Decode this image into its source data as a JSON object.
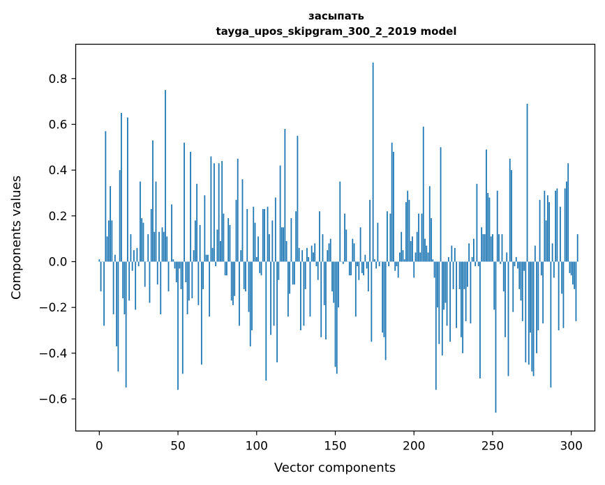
{
  "chart_data": {
    "type": "bar",
    "title_line1": "засыпать",
    "title_line2": "tayga_upos_skipgram_300_2_2019 model",
    "xlabel": "Vector components",
    "ylabel": "Components values",
    "xlim": [
      -15,
      315
    ],
    "ylim": [
      -0.74,
      0.95
    ],
    "xticks": [
      0,
      50,
      100,
      150,
      200,
      250,
      300
    ],
    "xtick_labels": [
      "0",
      "50",
      "100",
      "150",
      "200",
      "250",
      "300"
    ],
    "yticks": [
      -0.6,
      -0.4,
      -0.2,
      0.0,
      0.2,
      0.4,
      0.6,
      0.8
    ],
    "ytick_labels": [
      "−0.6",
      "−0.4",
      "−0.2",
      "0.0",
      "0.2",
      "0.4",
      "0.6",
      "0.8"
    ],
    "bar_color": "#1f77b4",
    "grid": false,
    "values": [
      0.01,
      -0.13,
      0.0,
      -0.28,
      0.57,
      0.11,
      0.18,
      0.33,
      0.18,
      -0.23,
      0.03,
      -0.37,
      -0.48,
      0.4,
      0.65,
      -0.16,
      -0.23,
      -0.55,
      0.63,
      -0.17,
      0.12,
      -0.04,
      0.05,
      -0.21,
      0.06,
      -0.02,
      0.35,
      0.19,
      0.17,
      -0.11,
      0.0,
      0.12,
      -0.18,
      0.23,
      0.53,
      0.13,
      0.35,
      -0.1,
      0.13,
      -0.23,
      0.15,
      0.13,
      0.75,
      0.11,
      -0.13,
      0.0,
      0.25,
      0.01,
      -0.03,
      -0.09,
      -0.56,
      -0.03,
      -0.12,
      -0.49,
      0.52,
      -0.09,
      -0.23,
      -0.17,
      0.48,
      -0.16,
      0.05,
      0.18,
      0.34,
      -0.19,
      0.16,
      -0.45,
      -0.12,
      0.29,
      0.03,
      0.03,
      -0.24,
      0.46,
      0.06,
      0.43,
      -0.02,
      0.14,
      0.43,
      0.09,
      0.44,
      0.21,
      -0.06,
      -0.06,
      0.19,
      0.16,
      -0.17,
      -0.19,
      -0.15,
      0.27,
      0.45,
      -0.28,
      0.05,
      0.36,
      -0.12,
      -0.13,
      0.23,
      -0.22,
      -0.37,
      -0.3,
      0.24,
      0.17,
      0.02,
      0.11,
      -0.05,
      -0.06,
      0.23,
      0.23,
      -0.52,
      0.24,
      0.12,
      -0.32,
      0.18,
      -0.28,
      0.28,
      -0.44,
      -0.08,
      0.42,
      0.15,
      0.15,
      0.58,
      0.09,
      -0.24,
      -0.14,
      0.19,
      -0.1,
      -0.1,
      0.22,
      0.55,
      0.06,
      -0.3,
      0.05,
      -0.28,
      -0.12,
      0.06,
      0.02,
      -0.24,
      0.07,
      0.04,
      0.08,
      -0.02,
      -0.08,
      0.22,
      -0.33,
      0.12,
      -0.19,
      -0.34,
      0.05,
      0.08,
      0.1,
      -0.13,
      -0.18,
      -0.46,
      -0.49,
      -0.2,
      0.35,
      0.0,
      -0.01,
      0.21,
      0.14,
      0.0,
      -0.06,
      -0.06,
      0.1,
      0.08,
      -0.24,
      -0.02,
      -0.08,
      0.15,
      -0.05,
      -0.06,
      0.03,
      -0.03,
      -0.13,
      0.27,
      -0.35,
      0.87,
      0.01,
      -0.03,
      0.17,
      -0.02,
      0.0,
      -0.31,
      -0.33,
      -0.43,
      0.22,
      -0.02,
      0.21,
      0.52,
      0.48,
      -0.04,
      -0.02,
      -0.07,
      0.04,
      0.13,
      0.05,
      0.01,
      0.26,
      0.31,
      0.27,
      0.09,
      0.11,
      -0.07,
      0.04,
      0.13,
      0.21,
      0.04,
      0.21,
      0.59,
      0.1,
      0.07,
      0.04,
      0.33,
      0.19,
      0.01,
      -0.07,
      -0.56,
      -0.2,
      -0.36,
      0.5,
      -0.41,
      -0.21,
      -0.18,
      -0.28,
      0.02,
      -0.35,
      0.07,
      -0.12,
      0.06,
      -0.29,
      0.0,
      -0.12,
      -0.33,
      -0.4,
      -0.12,
      -0.26,
      -0.11,
      0.08,
      -0.27,
      0.02,
      0.1,
      -0.02,
      0.34,
      -0.02,
      -0.51,
      0.15,
      0.12,
      0.12,
      0.49,
      0.3,
      0.28,
      0.11,
      0.12,
      -0.21,
      -0.66,
      0.31,
      0.12,
      -0.01,
      0.12,
      -0.13,
      -0.33,
      0.04,
      -0.5,
      0.45,
      0.4,
      -0.22,
      -0.02,
      0.02,
      -0.03,
      -0.12,
      -0.17,
      -0.26,
      -0.04,
      -0.44,
      0.69,
      -0.45,
      -0.31,
      -0.48,
      -0.5,
      0.07,
      -0.4,
      -0.3,
      0.27,
      -0.06,
      -0.27,
      0.31,
      0.18,
      0.29,
      0.26,
      -0.55,
      0.08,
      -0.07,
      0.31,
      0.32,
      -0.3,
      0.24,
      -0.14,
      -0.29,
      0.32,
      0.35,
      0.43,
      -0.05,
      -0.06,
      -0.1,
      -0.12,
      -0.26,
      0.12
    ]
  }
}
